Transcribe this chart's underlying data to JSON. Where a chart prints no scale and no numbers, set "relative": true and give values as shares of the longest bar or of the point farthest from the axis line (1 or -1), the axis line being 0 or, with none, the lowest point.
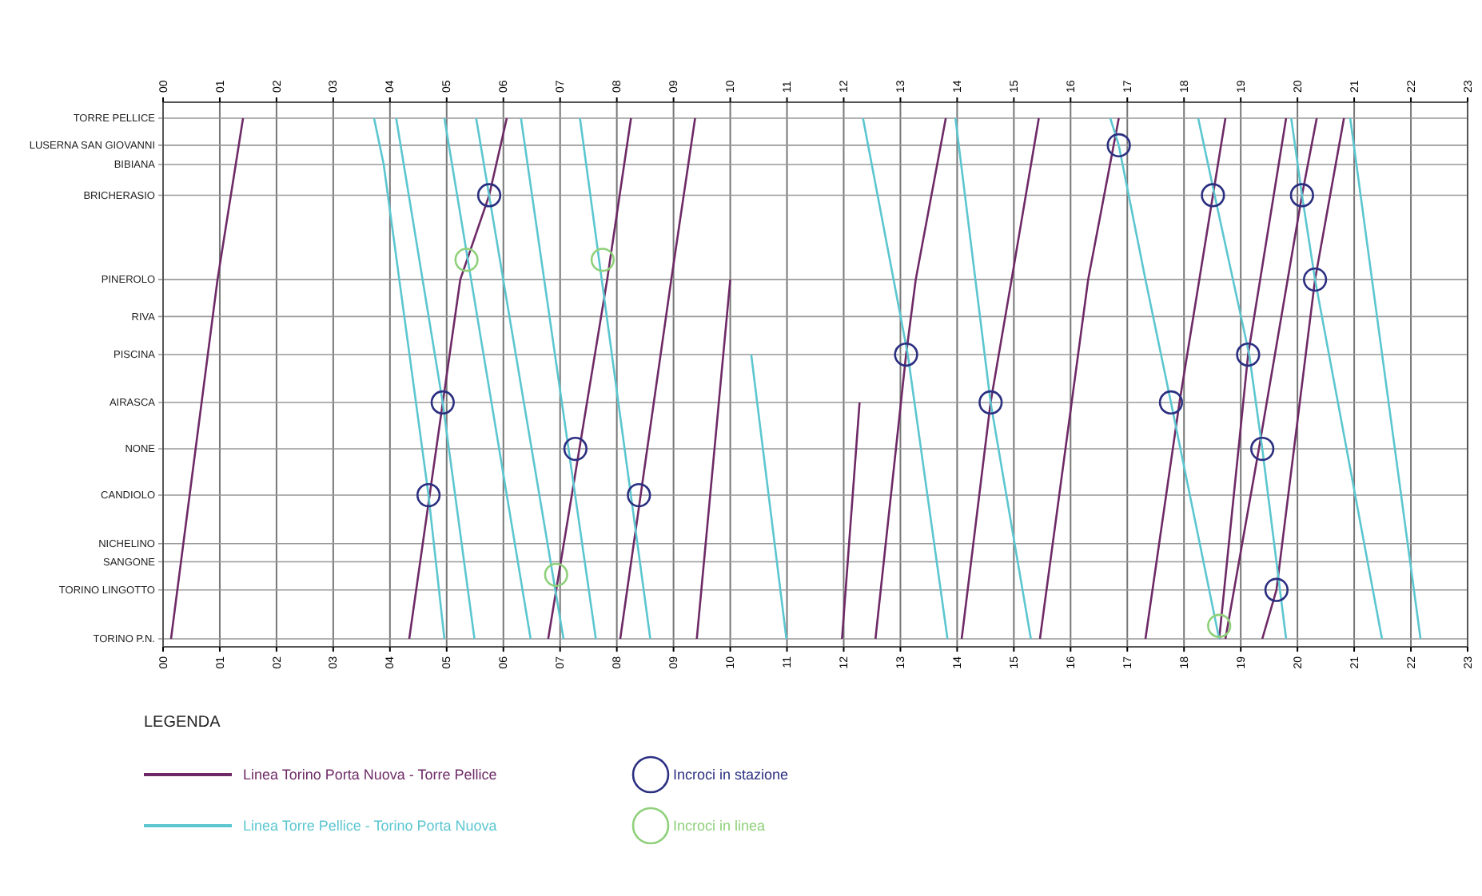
{
  "chart_data": {
    "type": "line",
    "relative": true,
    "xlim": [
      0,
      23
    ],
    "xticks": [
      {
        "value": 0,
        "label": "00"
      },
      {
        "value": 1,
        "label": "01"
      },
      {
        "value": 2,
        "label": "02"
      },
      {
        "value": 3,
        "label": "03"
      },
      {
        "value": 4,
        "label": "04"
      },
      {
        "value": 5,
        "label": "05"
      },
      {
        "value": 6,
        "label": "06"
      },
      {
        "value": 7,
        "label": "07"
      },
      {
        "value": 8,
        "label": "08"
      },
      {
        "value": 9,
        "label": "09"
      },
      10,
      11,
      12,
      13,
      14,
      15,
      16,
      17,
      18,
      19,
      20,
      21,
      22,
      23
    ],
    "x2lim": [
      0,
      23
    ],
    "x2ticks": [
      {
        "value": 0,
        "label": "00"
      },
      {
        "value": 1,
        "label": "01"
      },
      {
        "value": 2,
        "label": "02"
      },
      {
        "value": 3,
        "label": "03"
      },
      {
        "value": 4,
        "label": "04"
      },
      {
        "value": 5,
        "label": "05"
      },
      {
        "value": 6,
        "label": "06"
      },
      {
        "value": 7,
        "label": "07"
      },
      {
        "value": 8,
        "label": "08"
      },
      {
        "value": 9,
        "label": "09"
      },
      10,
      11,
      12,
      13,
      14,
      15,
      16,
      17,
      18,
      19,
      20,
      21,
      22,
      23
    ],
    "ref_lines": [
      {
        "axis": "y",
        "value": 0,
        "label": "TORINO P.N."
      },
      {
        "axis": "y",
        "value": 0.094,
        "label": "TORINO LINGOTTO"
      },
      {
        "axis": "y",
        "value": 0.148,
        "label": "SANGONE"
      },
      {
        "axis": "y",
        "value": 0.183,
        "label": "NICHELINO"
      },
      {
        "axis": "y",
        "value": 0.276,
        "label": "CANDIOLO"
      },
      {
        "axis": "y",
        "value": 0.365,
        "label": "NONE"
      },
      {
        "axis": "y",
        "value": 0.454,
        "label": "AIRASCA"
      },
      {
        "axis": "y",
        "value": 0.546,
        "label": "PISCINA"
      },
      {
        "axis": "y",
        "value": 0.619,
        "label": "RIVA"
      },
      {
        "axis": "y",
        "value": 0.69,
        "label": "PINEROLO"
      },
      {
        "axis": "y",
        "value": 0.852,
        "label": "BRICHERASIO"
      },
      {
        "axis": "y",
        "value": 0.911,
        "label": "BIBIANA"
      },
      {
        "axis": "y",
        "value": 0.948,
        "label": "LUSERNA SAN GIOVANNI"
      },
      {
        "axis": "y",
        "value": 1,
        "label": "TORRE PELLICE"
      }
    ],
    "grid": "x",
    "legend": "bottom left",
    "legend_title": "LEGENDA",
    "line_style": "solid",
    "series": [
      {
        "name": "Linea Torino Porta Nuova - Torre Pellice",
        "color": "#6e2a66",
        "type": "line",
        "marker": "none",
        "x": [
          0.14,
          0.96,
          1.41,
          null,
          4.34,
          5.24,
          5.75,
          6.06,
          null,
          6.79,
          7.83,
          8.25,
          null,
          8.06,
          8.96,
          9.38,
          null,
          10.0,
          9.41,
          null,
          11.97,
          12.28,
          null,
          12.56,
          13.1,
          13.27,
          13.8,
          null,
          14.08,
          14.59,
          14.96,
          15.44,
          null,
          15.46,
          16.31,
          16.85,
          null,
          17.32,
          17.92,
          18.51,
          18.73,
          null,
          18.73,
          19.32,
          20.08,
          20.34,
          null,
          18.62,
          19.13,
          19.8,
          null,
          19.38,
          19.63,
          20.31,
          20.82
        ],
        "values": [
          0,
          0.69,
          1,
          null,
          0,
          0.69,
          0.852,
          1,
          null,
          0,
          0.69,
          1,
          null,
          0,
          0.69,
          1,
          null,
          0.69,
          0,
          null,
          0,
          0.454,
          null,
          0,
          0.546,
          0.69,
          1,
          null,
          0,
          0.454,
          0.69,
          1,
          null,
          0,
          0.69,
          1,
          null,
          0,
          0.454,
          0.852,
          1,
          null,
          0,
          0.365,
          0.852,
          1,
          null,
          0,
          0.546,
          1,
          null,
          0,
          0.094,
          0.69,
          1
        ]
      },
      {
        "name": "Linea Torre Pellice - Torino Porta Nuova",
        "color": "#5cc6d0",
        "type": "line",
        "marker": "none",
        "x": [
          3.72,
          3.89,
          4.68,
          4.96,
          null,
          4.11,
          4.93,
          5.49,
          null,
          4.96,
          6.48,
          null,
          5.52,
          7.06,
          null,
          6.31,
          7.63,
          null,
          7.35,
          8.59,
          null,
          10.37,
          10.99,
          null,
          12.34,
          13.13,
          13.83,
          null,
          13.97,
          14.59,
          15.3,
          null,
          16.7,
          16.85,
          17.32,
          17.77,
          18.62,
          null,
          18.25,
          18.54,
          19.15,
          19.38,
          19.8,
          null,
          19.89,
          20.08,
          20.31,
          21.49,
          null,
          20.93,
          22.17
        ],
        "values": [
          1,
          0.911,
          0.276,
          0,
          null,
          1,
          0.454,
          0,
          null,
          1,
          0,
          null,
          1,
          0,
          null,
          1,
          0,
          null,
          1,
          0,
          null,
          0.546,
          0,
          null,
          1,
          0.546,
          0,
          null,
          1,
          0.454,
          0,
          null,
          1,
          0.948,
          0.69,
          0.454,
          0,
          null,
          1,
          0.852,
          0.546,
          0.365,
          0,
          null,
          1,
          0.852,
          0.69,
          0,
          null,
          1,
          0
        ]
      },
      {
        "name": "Incroci in stazione",
        "color": "#2b2f80",
        "type": "scatter",
        "marker": "circle",
        "x": [
          5.75,
          4.93,
          4.68,
          7.27,
          8.39,
          13.1,
          14.59,
          16.85,
          18.51,
          20.08,
          20.31,
          19.13,
          17.77,
          19.38,
          19.63
        ],
        "values": [
          0.852,
          0.454,
          0.276,
          0.365,
          0.276,
          0.546,
          0.454,
          0.948,
          0.852,
          0.852,
          0.69,
          0.546,
          0.454,
          0.365,
          0.094
        ]
      },
      {
        "name": "Incroci in linea",
        "color": "#8fd07a",
        "type": "scatter",
        "marker": "circle",
        "x": [
          5.35,
          7.75,
          6.93,
          18.62
        ],
        "values": [
          0.728,
          0.728,
          0.123,
          0.025
        ]
      }
    ]
  }
}
